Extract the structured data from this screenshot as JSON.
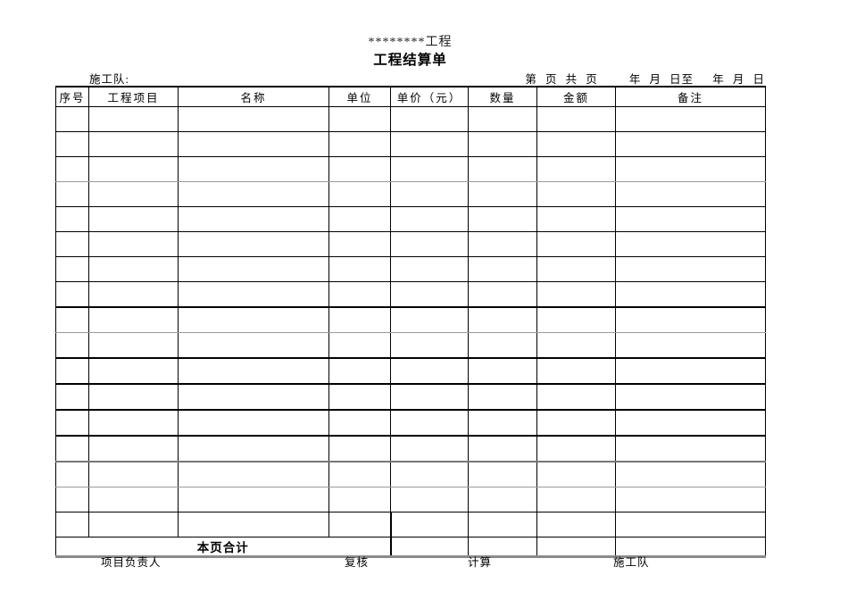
{
  "header": {
    "project_title": "********工程",
    "form_title": "工程结算单",
    "team_label": "施工队:",
    "page_info": "第 页 共 页",
    "date_from": "年 月 日至",
    "date_to": "年 月 日"
  },
  "table": {
    "columns": [
      "序号",
      "工程项目",
      "名称",
      "单位",
      "单价（元）",
      "数量",
      "金额",
      "备注"
    ],
    "empty_row_count": 17,
    "total_row": {
      "label": "本页合计",
      "label_colspan": 4,
      "empty_cells": 4
    }
  },
  "footer": {
    "signatures": [
      "项目负责人",
      "复核",
      "计算",
      "施工队"
    ]
  },
  "colors": {
    "background": "#ffffff",
    "text": "#000000",
    "border": "#000000",
    "border_soft": "#9a9a9a",
    "table_bottom_border": "#8a8a8a"
  }
}
